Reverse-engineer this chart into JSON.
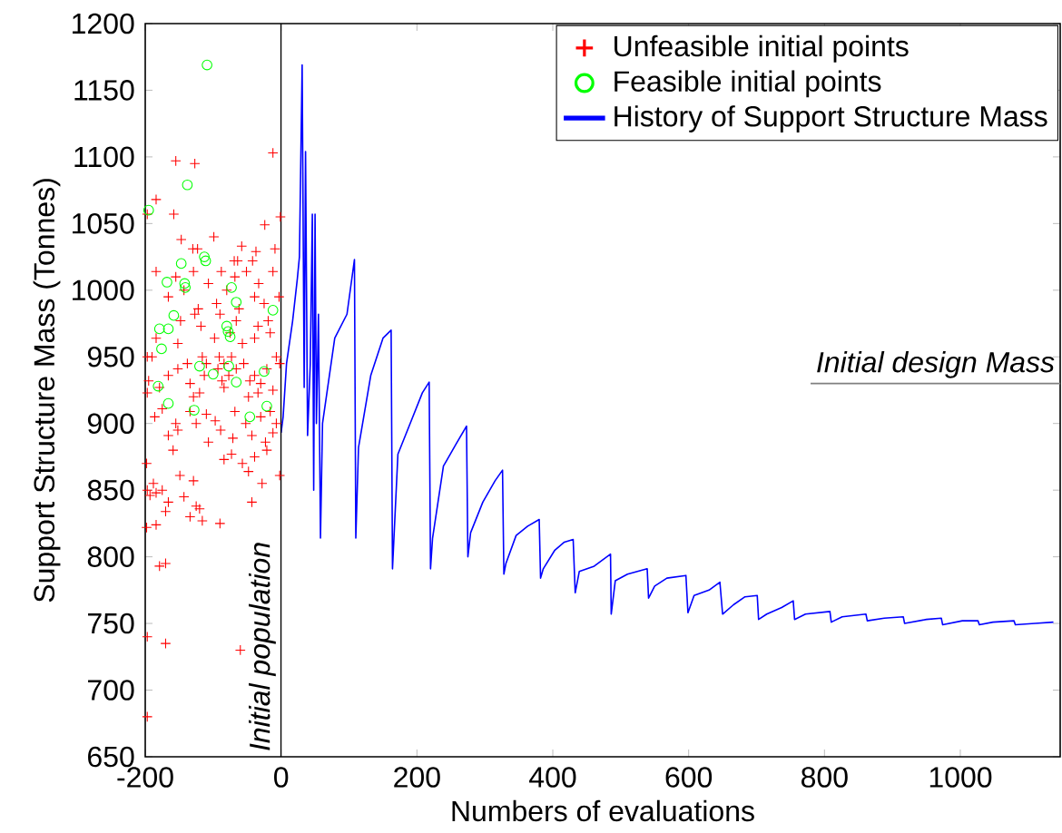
{
  "chart_data": {
    "type": "scatter",
    "xlabel": "Numbers of evaluations",
    "ylabel": "Support Structure Mass (Tonnes)",
    "xlim": [
      -200,
      1147
    ],
    "ylim": [
      650,
      1200
    ],
    "xticks": [
      -200,
      0,
      200,
      400,
      600,
      800,
      1000
    ],
    "yticks": [
      650,
      700,
      750,
      800,
      850,
      900,
      950,
      1000,
      1050,
      1100,
      1150,
      1200
    ],
    "grid": false,
    "legend": "top right",
    "ref_lines": [
      {
        "axis": "x",
        "value": 0,
        "label": "Initial population",
        "color": "#000000"
      },
      {
        "axis": "y",
        "value": 930,
        "label": "Initial design Mass",
        "color": "#808080"
      }
    ],
    "series": [
      {
        "name": "Unfeasible initial points",
        "type": "scatter",
        "marker": "cross",
        "color": "#ff0000",
        "x": [
          -12,
          -155,
          -127,
          -184,
          -197,
          -158,
          -1,
          -24,
          -147,
          -99,
          -130,
          -123,
          -9,
          -58,
          -64,
          -42,
          -69,
          -37,
          -184,
          -155,
          -129,
          -107,
          -88,
          -68,
          -51,
          -33,
          -12,
          -166,
          -143,
          -122,
          -95,
          -80,
          -62,
          -39,
          -25,
          -3,
          -148,
          -127,
          -118,
          -90,
          -66,
          -34,
          -19,
          -184,
          -152,
          -98,
          -75,
          -57,
          -39,
          -16,
          -197,
          -190,
          -138,
          -116,
          -110,
          -91,
          -84,
          -73,
          -55,
          -7,
          -2,
          -195,
          -166,
          -152,
          -134,
          -113,
          -93,
          -87,
          -77,
          -66,
          -46,
          -39,
          -30,
          -21,
          -197,
          -179,
          -129,
          -120,
          -84,
          -48,
          -34,
          -12,
          -186,
          -175,
          -155,
          -134,
          -125,
          -110,
          -97,
          -68,
          -52,
          -30,
          -16,
          -7,
          -166,
          -152,
          -107,
          -89,
          -71,
          -43,
          -23,
          -12,
          -198,
          -159,
          -84,
          -73,
          -57,
          -39,
          -21,
          -2,
          -197,
          -188,
          -175,
          -149,
          -129,
          -48,
          -28,
          -193,
          -184,
          -166,
          -143,
          -125,
          -43,
          -170,
          -134,
          -120,
          -116,
          -90,
          -198,
          -184,
          -179,
          -170,
          -197,
          -170,
          -60,
          -197
        ],
        "values": [
          1103,
          1097,
          1095,
          1068,
          1057,
          1057,
          1055,
          1049,
          1038,
          1040,
          1031,
          1031,
          1031,
          1033,
          1022,
          1022,
          1022,
          1029,
          1014,
          1010,
          1014,
          1005,
          1014,
          1010,
          1014,
          1005,
          1014,
          995,
          1000,
          986,
          990,
          1000,
          986,
          995,
          990,
          995,
          977,
          982,
          973,
          982,
          977,
          973,
          977,
          964,
          960,
          964,
          968,
          960,
          964,
          968,
          950,
          950,
          945,
          950,
          945,
          950,
          945,
          950,
          945,
          950,
          945,
          932,
          936,
          941,
          930,
          936,
          941,
          932,
          936,
          941,
          932,
          936,
          930,
          941,
          923,
          927,
          920,
          923,
          927,
          920,
          923,
          925,
          905,
          911,
          900,
          909,
          900,
          907,
          902,
          909,
          900,
          905,
          909,
          900,
          891,
          895,
          886,
          895,
          889,
          891,
          886,
          893,
          870,
          880,
          873,
          877,
          870,
          875,
          880,
          861,
          850,
          855,
          850,
          861,
          857,
          864,
          855,
          846,
          848,
          841,
          845,
          838,
          841,
          834,
          830,
          836,
          827,
          825,
          822,
          824,
          793,
          795,
          740,
          735,
          730,
          680
        ]
      },
      {
        "name": "Feasible initial points",
        "type": "scatter",
        "marker": "circle",
        "color": "#00ff00",
        "x": [
          -109,
          -138,
          -195,
          -113,
          -111,
          -147,
          -168,
          -142,
          -141,
          -73,
          -66,
          -12,
          -158,
          -179,
          -166,
          -80,
          -78,
          -75,
          -176,
          -120,
          -77,
          -100,
          -66,
          -25,
          -181,
          -166,
          -128,
          -21,
          -46
        ],
        "values": [
          1169,
          1079,
          1060,
          1025,
          1022,
          1020,
          1006,
          1005,
          1002,
          1002,
          991,
          985,
          981,
          971,
          971,
          973,
          969,
          965,
          956,
          943,
          943,
          937,
          931,
          939,
          928,
          915,
          910,
          913,
          905
        ]
      },
      {
        "name": "History of Support Structure Mass",
        "type": "line",
        "marker": "none",
        "color": "#0000ff",
        "x": [
          0,
          3,
          8,
          17,
          24,
          27,
          31,
          34,
          36,
          39,
          43,
          46,
          48,
          50,
          52,
          55,
          58,
          61,
          79,
          97,
          108,
          110,
          114,
          132,
          150,
          162,
          164,
          172,
          190,
          208,
          218,
          220,
          223,
          239,
          257,
          273,
          275,
          279,
          297,
          315,
          326,
          328,
          331,
          346,
          363,
          380,
          382,
          386,
          403,
          417,
          430,
          433,
          439,
          461,
          485,
          486,
          492,
          510,
          539,
          541,
          550,
          568,
          596,
          599,
          608,
          630,
          646,
          650,
          666,
          683,
          701,
          703,
          715,
          737,
          754,
          756,
          772,
          808,
          810,
          826,
          861,
          863,
          888,
          916,
          918,
          950,
          972,
          974,
          1003,
          1026,
          1028,
          1048,
          1079,
          1081,
          1110,
          1137
        ],
        "values": [
          893,
          905,
          945,
          977,
          1009,
          1025,
          1169,
          927,
          1104,
          891,
          945,
          1057,
          850,
          1057,
          900,
          982,
          814,
          900,
          964,
          982,
          1023,
          814,
          882,
          936,
          964,
          970,
          791,
          877,
          900,
          923,
          931,
          791,
          814,
          868,
          884,
          898,
          800,
          818,
          841,
          857,
          865,
          787,
          795,
          816,
          823,
          828,
          784,
          791,
          805,
          811,
          813,
          773,
          789,
          793,
          802,
          757,
          782,
          787,
          791,
          769,
          778,
          784,
          786,
          758,
          771,
          775,
          781,
          757,
          764,
          770,
          771,
          753,
          757,
          762,
          767,
          753,
          757,
          759,
          751,
          755,
          757,
          752,
          754,
          755,
          750,
          753,
          754,
          749,
          752,
          752,
          749,
          751,
          752,
          749,
          750,
          751
        ]
      }
    ]
  }
}
